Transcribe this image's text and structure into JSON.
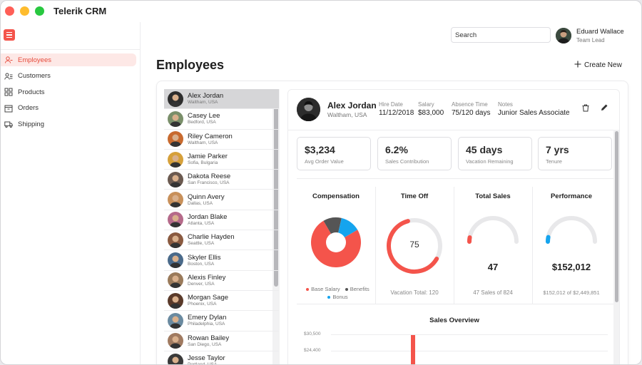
{
  "app": {
    "title": "Telerik CRM",
    "window_controls": [
      {
        "name": "close",
        "color": "#ff5f57"
      },
      {
        "name": "minimize",
        "color": "#febc2e"
      },
      {
        "name": "zoom",
        "color": "#28c840"
      }
    ]
  },
  "colors": {
    "accent": "#f4544b",
    "active_bg": "#fde8e6",
    "benefits": "#555555",
    "bonus": "#15a4ee"
  },
  "sidebar": {
    "items": [
      {
        "label": "Employees",
        "icon": "employees-icon",
        "active": true
      },
      {
        "label": "Customers",
        "icon": "customers-icon",
        "active": false
      },
      {
        "label": "Products",
        "icon": "products-icon",
        "active": false
      },
      {
        "label": "Orders",
        "icon": "orders-icon",
        "active": false
      },
      {
        "label": "Shipping",
        "icon": "shipping-icon",
        "active": false
      }
    ]
  },
  "header": {
    "search_placeholder": "Search",
    "user": {
      "name": "Eduard Wallace",
      "role": "Team Lead"
    }
  },
  "page": {
    "title": "Employees",
    "create_label": "Create New"
  },
  "employees": [
    {
      "name": "Alex Jordan",
      "location": "Waltham, USA",
      "selected": true
    },
    {
      "name": "Casey Lee",
      "location": "Bedford, USA"
    },
    {
      "name": "Riley Cameron",
      "location": "Waltham, USA"
    },
    {
      "name": "Jamie Parker",
      "location": "Sofia, Bulgaria"
    },
    {
      "name": "Dakota Reese",
      "location": "San Francisco, USA"
    },
    {
      "name": "Quinn Avery",
      "location": "Dallas, USA"
    },
    {
      "name": "Jordan Blake",
      "location": "Atlanta, USA"
    },
    {
      "name": "Charlie Hayden",
      "location": "Seattle, USA"
    },
    {
      "name": "Skyler Ellis",
      "location": "Boston, USA"
    },
    {
      "name": "Alexis Finley",
      "location": "Denver, USA"
    },
    {
      "name": "Morgan Sage",
      "location": "Phoenix, USA"
    },
    {
      "name": "Emery Dylan",
      "location": "Philadelphia, USA"
    },
    {
      "name": "Rowan Bailey",
      "location": "San Diego, USA"
    },
    {
      "name": "Jesse Taylor",
      "location": "Portland, USA"
    }
  ],
  "detail": {
    "name": "Alex Jordan",
    "location": "Waltham, USA",
    "meta": [
      {
        "label": "Hire Date",
        "value": "11/12/2018"
      },
      {
        "label": "Salary",
        "value": "$83,000"
      },
      {
        "label": "Absence Time",
        "value": "75/120 days"
      },
      {
        "label": "Notes",
        "value": "Junior Sales Associate"
      }
    ],
    "stats": [
      {
        "value": "$3,234",
        "label": "Avg Order Value"
      },
      {
        "value": "6.2%",
        "label": "Sales Contribution"
      },
      {
        "value": "45 days",
        "label": "Vacation Remaining"
      },
      {
        "value": "7 yrs",
        "label": "Tenure"
      }
    ],
    "compensation": {
      "title": "Compensation",
      "legend": [
        "Base Salary",
        "Benefits",
        "Bonus"
      ],
      "shares": [
        0.75,
        0.12,
        0.13
      ]
    },
    "time_off": {
      "title": "Time Off",
      "value": "75",
      "fraction": 0.625,
      "footer": "Vacation Total: 120"
    },
    "total_sales": {
      "title": "Total Sales",
      "value": "47",
      "fraction": 0.057,
      "footer": "47 Sales of 824"
    },
    "performance": {
      "title": "Performance",
      "value": "$152,012",
      "fraction": 0.062,
      "footer": "$152,012 of $2,449,851"
    },
    "sales_overview": {
      "title": "Sales Overview",
      "ticks": [
        "$30,500",
        "$24,400"
      ]
    }
  }
}
